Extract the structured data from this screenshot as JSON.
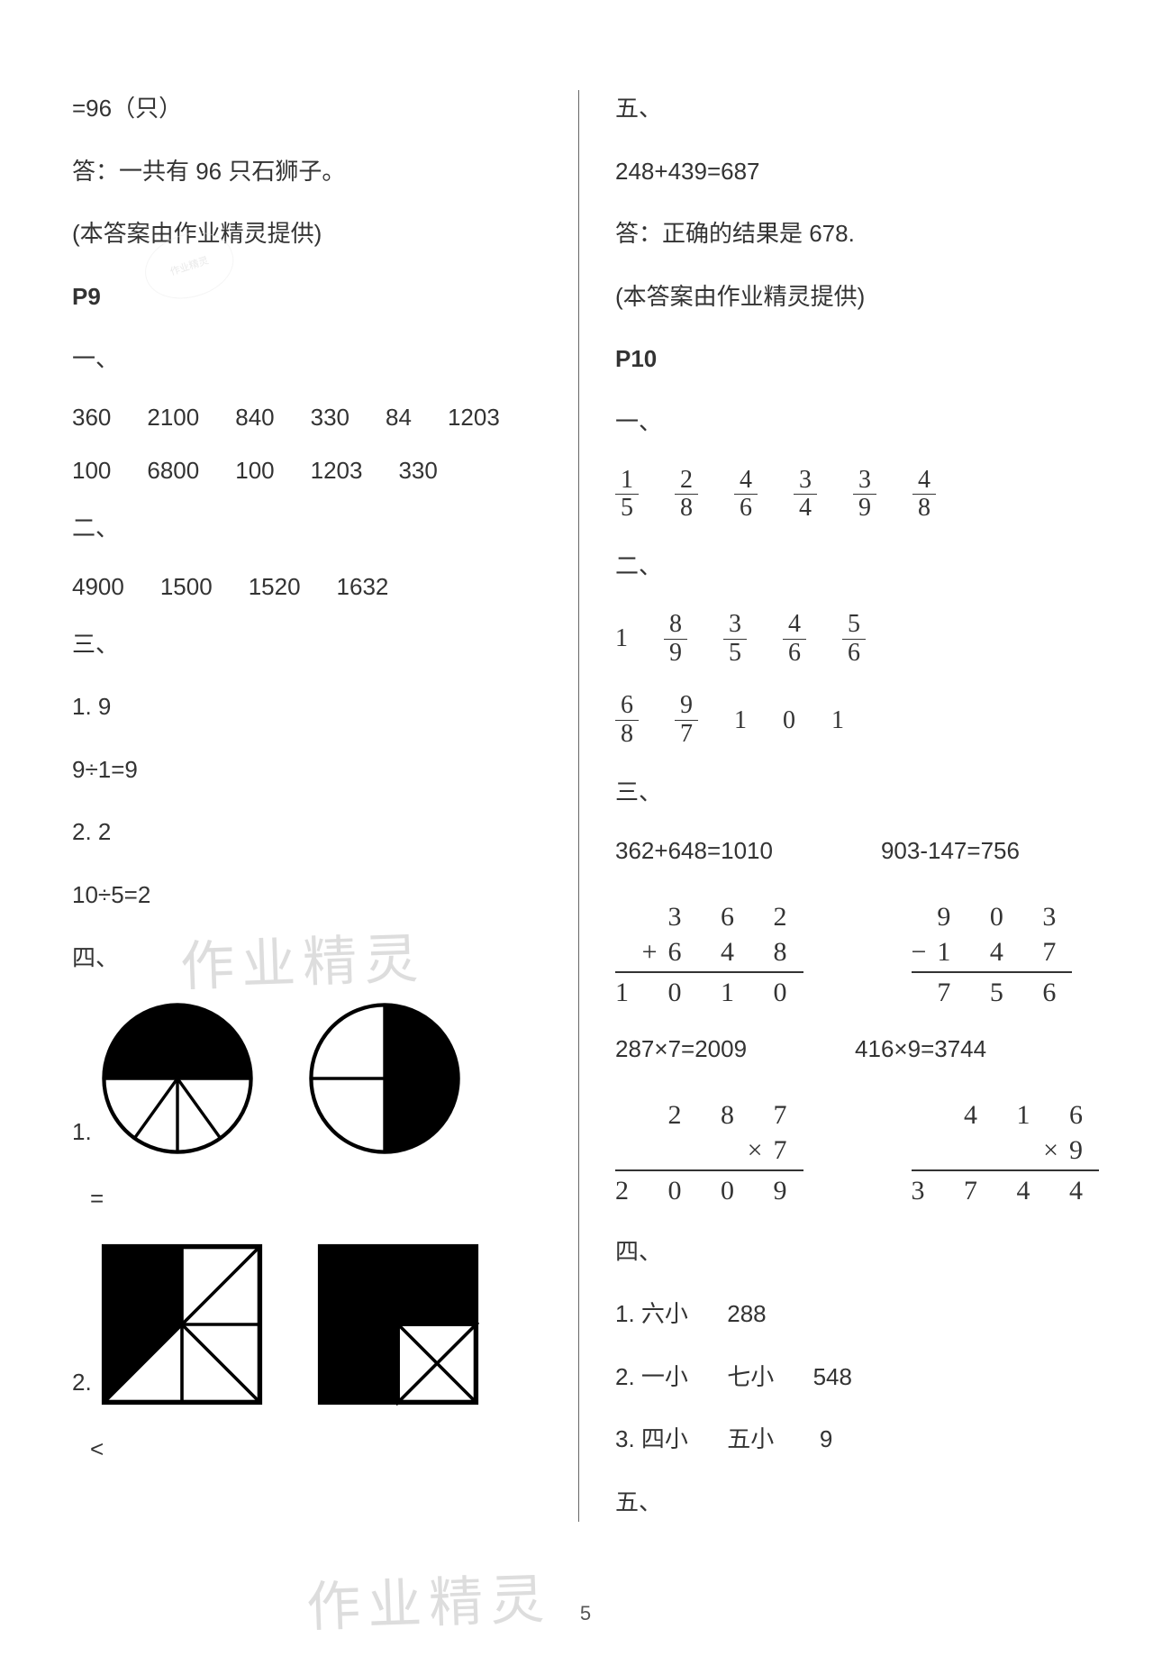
{
  "page_number": "5",
  "watermark_text": "作业精灵",
  "stamp_text": "作业精灵",
  "left": {
    "line1": "=96（只）",
    "line2": "答：一共有 96 只石狮子。",
    "line3": "(本答案由作业精灵提供)",
    "p9": "P9",
    "s1": "一、",
    "row1": [
      "360",
      "2100",
      "840",
      "330",
      "84",
      "1203"
    ],
    "row2": [
      "100",
      "6800",
      "100",
      "1203",
      "330"
    ],
    "s2": "二、",
    "row3": [
      "4900",
      "1500",
      "1520",
      "1632"
    ],
    "s3": "三、",
    "q1a": "1. 9",
    "q1b": "9÷1=9",
    "q2a": "2. 2",
    "q2b": "10÷5=2",
    "s4": "四、",
    "shape1_label": "1.",
    "shape1_cmp": "=",
    "shape2_label": "2.",
    "shape2_cmp": "<",
    "shapes": {
      "circle_size": 170,
      "square_size": 180,
      "stroke": "#000000",
      "fill": "#000000",
      "bg": "#ffffff"
    }
  },
  "right": {
    "s5": "五、",
    "eq1": "248+439=687",
    "ans1": "答：正确的结果是 678.",
    "prov": "(本答案由作业精灵提供)",
    "p10": "P10",
    "s1": "一、",
    "fr1": [
      {
        "n": "1",
        "d": "5"
      },
      {
        "n": "2",
        "d": "8"
      },
      {
        "n": "4",
        "d": "6"
      },
      {
        "n": "3",
        "d": "4"
      },
      {
        "n": "3",
        "d": "9"
      },
      {
        "n": "4",
        "d": "8"
      }
    ],
    "s2": "二、",
    "fr2a": [
      {
        "plain": "1"
      },
      {
        "n": "8",
        "d": "9"
      },
      {
        "n": "3",
        "d": "5"
      },
      {
        "n": "4",
        "d": "6"
      },
      {
        "n": "5",
        "d": "6"
      }
    ],
    "fr2b": [
      {
        "n": "6",
        "d": "8"
      },
      {
        "n": "9",
        "d": "7"
      },
      {
        "plain": "1"
      },
      {
        "plain": "0"
      },
      {
        "plain": "1"
      }
    ],
    "s3": "三、",
    "eqA": "362+648=1010",
    "eqB": "903-147=756",
    "calcA": {
      "l1": "3 6 2",
      "op": "+",
      "l2": "6 4 8",
      "res": "1 0 1 0"
    },
    "calcB": {
      "l1": "9 0 3",
      "op": "−",
      "l2": "1 4 7",
      "res": "7 5 6"
    },
    "eqC": "287×7=2009",
    "eqD": "416×9=3744",
    "calcC": {
      "l1": "2 8 7",
      "op": "×",
      "l2": "7",
      "res": "2 0 0 9"
    },
    "calcD": {
      "l1": "4 1 6",
      "op": "×",
      "l2": "9",
      "res": "3 7 4 4"
    },
    "s4": "四、",
    "q1": "1. 六小      288",
    "q2": "2. 一小      七小      548",
    "q3": "3. 四小      五小       9",
    "s5b": "五、"
  }
}
